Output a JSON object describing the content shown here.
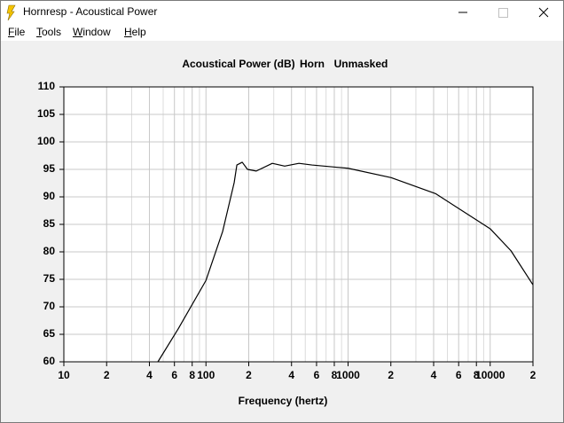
{
  "window": {
    "title": "Hornresp - Acoustical Power",
    "menu": [
      "File",
      "Tools",
      "Window",
      "Help"
    ]
  },
  "chart_data": {
    "type": "line",
    "title": "Acoustical Power (dB)",
    "annotations": [
      "Horn",
      "Unmasked"
    ],
    "x_label": "Frequency (hertz)",
    "log_x": true,
    "grid": true,
    "x": [
      45.9,
      63.8,
      100,
      131,
      158,
      165,
      180,
      196,
      226,
      293,
      358,
      451,
      557,
      1000,
      2010,
      4120,
      10000,
      14000,
      20000
    ],
    "series": [
      {
        "name": "Acoustical Power",
        "color": "#000000",
        "values": [
          60,
          66,
          74.8,
          83.7,
          92.6,
          95.8,
          96.3,
          95.0,
          94.7,
          96.1,
          95.6,
          96.1,
          95.8,
          95.2,
          93.5,
          90.6,
          84.2,
          80.2,
          74.0
        ]
      }
    ],
    "xlim": [
      10,
      20000
    ],
    "xticks": [
      10,
      {
        "value": 20,
        "label": "2"
      },
      {
        "value": 40,
        "label": "4"
      },
      {
        "value": 60,
        "label": "6"
      },
      {
        "value": 80,
        "label": "8"
      },
      100,
      {
        "value": 200,
        "label": "2"
      },
      {
        "value": 400,
        "label": "4"
      },
      {
        "value": 600,
        "label": "6"
      },
      {
        "value": 800,
        "label": "8"
      },
      1000,
      {
        "value": 2000,
        "label": "2"
      },
      {
        "value": 4000,
        "label": "4"
      },
      {
        "value": 6000,
        "label": "6"
      },
      {
        "value": 8000,
        "label": "8"
      },
      10000,
      {
        "value": 20000,
        "label": "2"
      }
    ],
    "ylim": [
      60,
      110
    ],
    "yticks": [
      60,
      65,
      70,
      75,
      80,
      85,
      90,
      95,
      100,
      105,
      110
    ]
  }
}
